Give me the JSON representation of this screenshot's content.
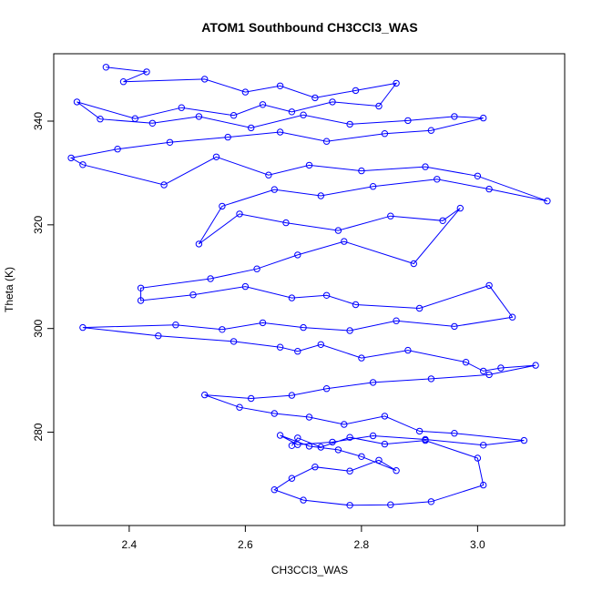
{
  "chart_data": {
    "type": "line",
    "title": "ATOM1 Southbound CH3CCl3_WAS",
    "xlabel": "CH3CCl3_WAS",
    "ylabel": "Theta (K)",
    "xlim": [
      2.27,
      3.15
    ],
    "ylim": [
      262,
      353
    ],
    "xticks": [
      2.4,
      2.6,
      2.8,
      3.0
    ],
    "xtick_labels": [
      "2.4",
      "2.6",
      "2.8",
      "3.0"
    ],
    "yticks": [
      280,
      300,
      320,
      340
    ],
    "ytick_labels": [
      "280",
      "300",
      "320",
      "340"
    ],
    "grid": false,
    "legend": "none",
    "series_color": "#0000ff",
    "marker": "open-circle",
    "series": [
      {
        "x": [
          2.36,
          2.43,
          2.39,
          2.53,
          2.6,
          2.66,
          2.72,
          2.79,
          2.86,
          2.83,
          2.75,
          2.68,
          2.63,
          2.58,
          2.49,
          2.41,
          2.31,
          2.35,
          2.44,
          2.52,
          2.61,
          2.7,
          2.78,
          2.88,
          2.96,
          3.01,
          2.92,
          2.84,
          2.74,
          2.66,
          2.57,
          2.47,
          2.38,
          2.3,
          2.32,
          2.46,
          2.55,
          2.64,
          2.71,
          2.8,
          2.91,
          3.0,
          3.12,
          3.02,
          2.93,
          2.82,
          2.73,
          2.65,
          2.56,
          2.52,
          2.59,
          2.67,
          2.76,
          2.85,
          2.94,
          2.97,
          2.89,
          2.77,
          2.69,
          2.62,
          2.54,
          2.42,
          2.42,
          2.51,
          2.6,
          2.68,
          2.74,
          2.79,
          2.9,
          3.02,
          3.06,
          2.96,
          2.86,
          2.78,
          2.7,
          2.63,
          2.56,
          2.48,
          2.32,
          2.45,
          2.58,
          2.66,
          2.69,
          2.73,
          2.8,
          2.88,
          2.98,
          3.01,
          3.04,
          3.1,
          3.02,
          2.92,
          2.82,
          2.74,
          2.68,
          2.61,
          2.53,
          2.59,
          2.65,
          2.71,
          2.77,
          2.84,
          2.9,
          2.96,
          3.08,
          3.01,
          2.91,
          2.82,
          2.75,
          2.69,
          2.66,
          2.71,
          2.76,
          2.8,
          2.86,
          2.83,
          2.78,
          2.72,
          2.68,
          2.65,
          2.7,
          2.78,
          2.85,
          2.92,
          3.01,
          3.0,
          2.91,
          2.84,
          2.78,
          2.73,
          2.69,
          2.68
        ],
        "y": [
          350.4,
          349.5,
          347.6,
          348.1,
          345.6,
          346.8,
          344.5,
          345.9,
          347.3,
          342.9,
          343.7,
          341.8,
          343.2,
          341.1,
          342.6,
          340.5,
          343.7,
          340.4,
          339.6,
          340.9,
          338.7,
          341.2,
          339.4,
          340.1,
          340.9,
          340.6,
          338.2,
          337.6,
          336.1,
          337.9,
          336.9,
          335.9,
          334.6,
          332.9,
          331.6,
          327.7,
          333.1,
          329.6,
          331.5,
          330.4,
          331.2,
          329.4,
          324.6,
          326.9,
          328.8,
          327.4,
          325.6,
          326.8,
          323.6,
          316.3,
          322.1,
          320.4,
          318.9,
          321.7,
          320.8,
          323.2,
          312.5,
          316.8,
          314.2,
          311.5,
          309.6,
          307.8,
          305.4,
          306.5,
          308.1,
          305.9,
          306.4,
          304.6,
          303.9,
          308.3,
          302.2,
          300.4,
          301.5,
          299.6,
          300.2,
          301.1,
          299.8,
          300.7,
          300.2,
          298.6,
          297.5,
          296.4,
          295.6,
          296.9,
          294.3,
          295.8,
          293.5,
          291.8,
          292.4,
          292.9,
          291.1,
          290.3,
          289.6,
          288.4,
          287.1,
          286.5,
          287.2,
          284.8,
          283.6,
          282.9,
          281.5,
          283.1,
          280.2,
          279.8,
          278.4,
          277.5,
          278.6,
          279.3,
          278.1,
          277.6,
          279.4,
          277.3,
          276.6,
          275.3,
          272.6,
          274.6,
          272.5,
          273.3,
          271.1,
          268.9,
          266.9,
          265.9,
          266.0,
          266.6,
          269.8,
          275.0,
          278.4,
          277.7,
          279.0,
          277.1,
          278.9,
          277.4
        ]
      }
    ]
  }
}
